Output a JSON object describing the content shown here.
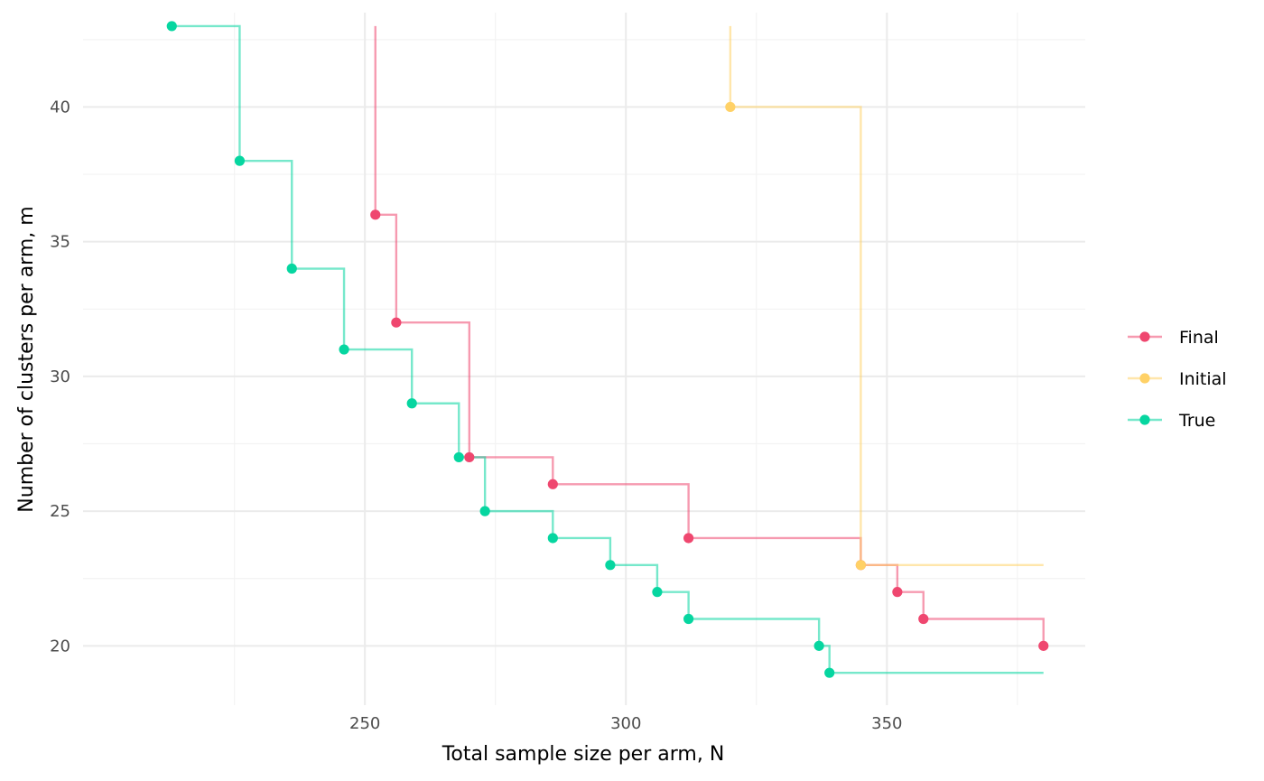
{
  "chart_data": {
    "type": "line",
    "style": "step",
    "xlabel": "Total sample size per arm, N",
    "ylabel": "Number of clusters per arm, m",
    "xlim": [
      196,
      388
    ],
    "ylim": [
      17.8,
      43.5
    ],
    "x_ticks": [
      250,
      300,
      350
    ],
    "x_minor_ticks": [
      225,
      275,
      325,
      375
    ],
    "y_ticks": [
      20,
      25,
      30,
      35,
      40
    ],
    "y_minor_ticks": [
      22.5,
      27.5,
      32.5,
      37.5,
      42.5
    ],
    "grid": true,
    "legend": "right",
    "series": [
      {
        "name": "Final",
        "color": "#EF476F",
        "line_start": [
          252,
          43
        ],
        "points": [
          [
            252,
            36
          ],
          [
            256,
            32
          ],
          [
            270,
            27
          ],
          [
            286,
            26
          ],
          [
            312,
            24
          ],
          [
            345,
            23
          ],
          [
            352,
            22
          ],
          [
            357,
            21
          ],
          [
            380,
            20
          ]
        ]
      },
      {
        "name": "Initial",
        "color": "#FFD166",
        "line_start": [
          320,
          43
        ],
        "points": [
          [
            320,
            40
          ],
          [
            345,
            23
          ]
        ],
        "line_end": [
          380,
          23
        ]
      },
      {
        "name": "True",
        "color": "#06D6A0",
        "points": [
          [
            213,
            43
          ],
          [
            226,
            38
          ],
          [
            236,
            34
          ],
          [
            246,
            31
          ],
          [
            259,
            29
          ],
          [
            268,
            27
          ],
          [
            273,
            25
          ],
          [
            286,
            24
          ],
          [
            297,
            23
          ],
          [
            306,
            22
          ],
          [
            312,
            21
          ],
          [
            337,
            20
          ],
          [
            339,
            19
          ]
        ],
        "line_end": [
          380,
          19
        ]
      }
    ]
  }
}
